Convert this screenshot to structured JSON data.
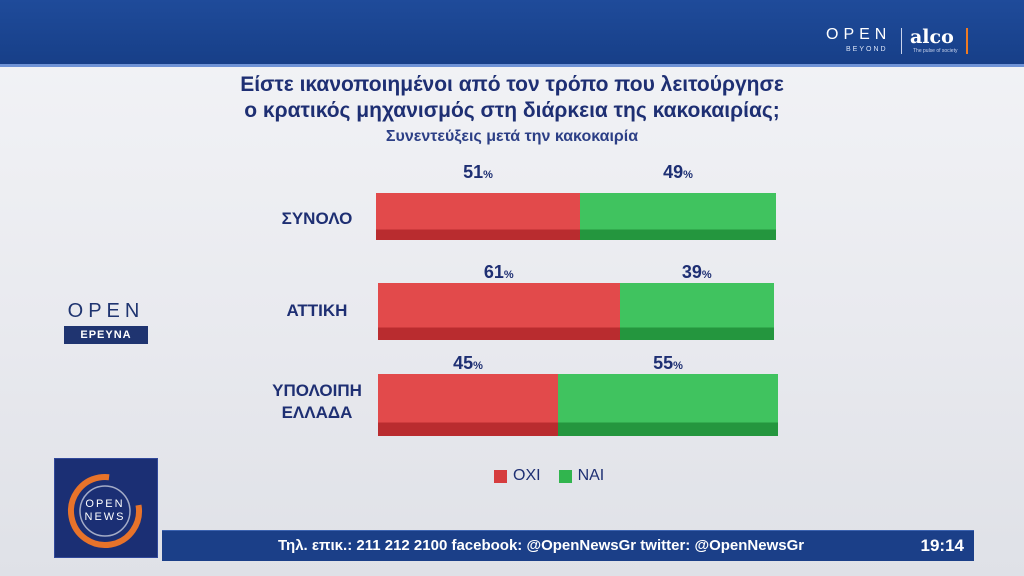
{
  "header": {
    "brand_open": "OPEN",
    "brand_beyond": "BEYOND",
    "brand_alco": "alco",
    "brand_alco_tag": "The pulse of society"
  },
  "title_line1": "Είστε ικανοποιημένοι από τον τρόπο που λειτούργησε",
  "title_line2": "ο κρατικός μηχανισμός στη διάρκεια της κακοκαιρίας;",
  "subtitle": "Συνεντεύξεις μετά την κακοκαιρία",
  "side_logo": {
    "open": "OPEN",
    "ereyna": "ΕΡΕΥΝΑ"
  },
  "news_logo": {
    "open": "OPEN",
    "news": "NEWS"
  },
  "colors": {
    "oxi": "#d63c3e",
    "nai": "#31b54e"
  },
  "chart_data": {
    "type": "bar",
    "stacked": true,
    "orientation": "horizontal",
    "categories": [
      "ΣΥΝΟΛΟ",
      "ΑΤΤΙΚΗ",
      "ΥΠΟΛΟΙΠΗ ΕΛΛΑΔΑ"
    ],
    "series": [
      {
        "name": "ΟΧΙ",
        "values": [
          51,
          61,
          45
        ],
        "color": "#d63c3e"
      },
      {
        "name": "ΝΑΙ",
        "values": [
          49,
          39,
          55
        ],
        "color": "#31b54e"
      }
    ],
    "value_suffix": "%",
    "legend_position": "bottom"
  },
  "labels": {
    "row0_label": "ΣΥΝΟΛΟ",
    "row1_label": "ΑΤΤΙΚΗ",
    "row2_label_line1": "ΥΠΟΛΟΙΠΗ",
    "row2_label_line2": "ΕΛΛΑΔΑ"
  },
  "legend": {
    "oxi": "ΟΧΙ",
    "nai": "ΝΑΙ"
  },
  "ticker": {
    "text": "Τηλ. επικ.: 211 212 2100 facebook: @OpenNewsGr twitter: @OpenNewsGr",
    "time": "19:14"
  }
}
